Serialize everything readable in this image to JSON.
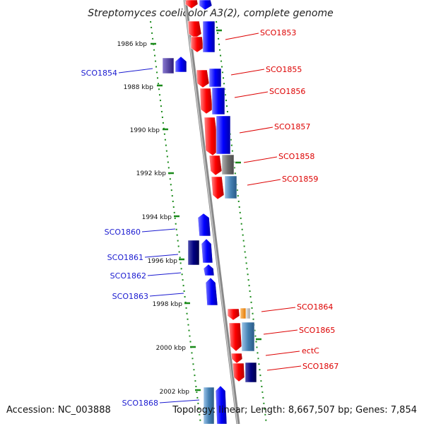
{
  "title": "Streptomyces coelicolor A3(2), complete genome",
  "footer": {
    "accession": "Accession: NC_003888",
    "summary": "Topology: linear; Length: 8,667,507 bp; Genes: 7,854"
  },
  "scale_labels": [
    "1986 kbp",
    "1988 kbp",
    "1990 kbp",
    "1992 kbp",
    "1994 kbp",
    "1996 kbp",
    "1998 kbp",
    "2000 kbp",
    "2002 kbp"
  ],
  "genes_left": [
    "SCO1854",
    "SCO1860",
    "SCO1861",
    "SCO1862",
    "SCO1863",
    "SCO1868"
  ],
  "genes_right": [
    "SCO1853",
    "SCO1855",
    "SCO1856",
    "SCO1857",
    "SCO1858",
    "SCO1859",
    "SCO1864",
    "SCO1865",
    "ectC",
    "SCO1867"
  ],
  "colors": {
    "forward_strand": "#ff0000",
    "reverse_strand": "#0000ff",
    "navy": "#000080",
    "steel_blue": "#4682b4",
    "gray": "#808080",
    "orange": "#ff8c00",
    "axis": "#a0a0a0",
    "tick": "#008000",
    "left_label": "#1a1ad0",
    "right_label": "#dd0000"
  }
}
